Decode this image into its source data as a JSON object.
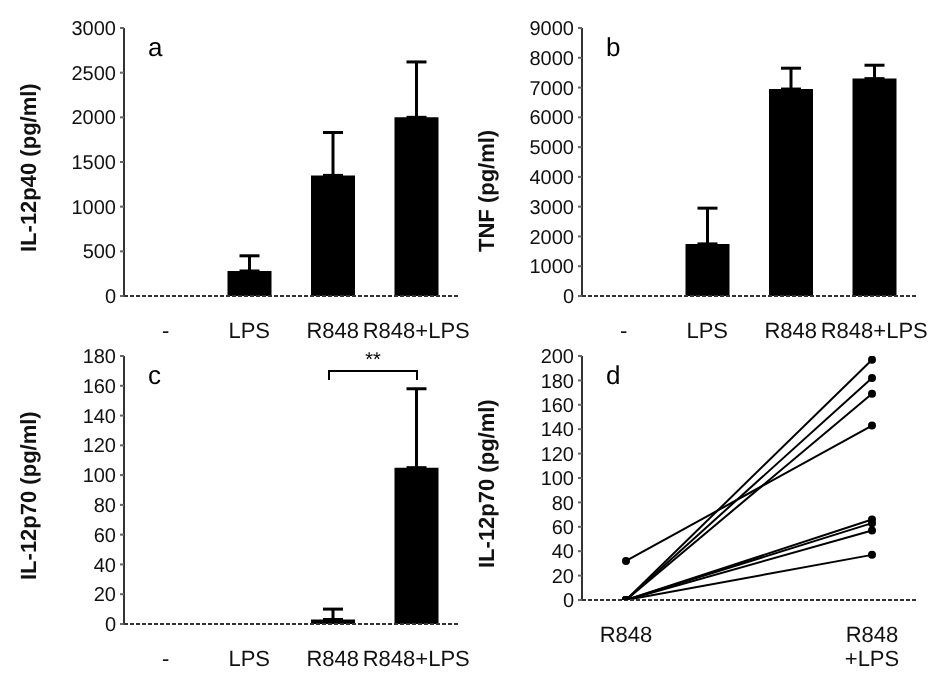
{
  "chart_data": [
    {
      "type": "bar",
      "ylabel": "IL-12p40 (pg/ml)",
      "categories": [
        "-",
        "LPS",
        "R848",
        "R848+LPS"
      ],
      "values": [
        0,
        280,
        1350,
        2000
      ],
      "errors": [
        null,
        [
          280,
          450
        ],
        [
          1350,
          1830
        ],
        [
          2000,
          2620
        ]
      ],
      "color": "#000000",
      "ylim": [
        0,
        3000
      ],
      "yticks": [
        0,
        500,
        1000,
        1500,
        2000,
        2500,
        3000
      ],
      "grid": false,
      "annotations": [
        "a"
      ]
    },
    {
      "type": "bar",
      "ylabel": "TNF (pg/ml)",
      "categories": [
        "-",
        "LPS",
        "R848",
        "R848+LPS"
      ],
      "values": [
        0,
        1750,
        6950,
        7300
      ],
      "errors": [
        null,
        [
          1750,
          2950
        ],
        [
          6950,
          7650
        ],
        [
          7300,
          7750
        ]
      ],
      "color": "#000000",
      "ylim": [
        0,
        9000
      ],
      "yticks": [
        0,
        1000,
        2000,
        3000,
        4000,
        5000,
        6000,
        7000,
        8000,
        9000
      ],
      "grid": false,
      "annotations": [
        "b"
      ]
    },
    {
      "type": "bar",
      "ylabel": "IL-12p70 (pg/ml)",
      "categories": [
        "-",
        "LPS",
        "R848",
        "R848+LPS"
      ],
      "values": [
        0,
        0,
        3,
        105
      ],
      "errors": [
        null,
        null,
        [
          3,
          10
        ],
        [
          105,
          158
        ]
      ],
      "color": "#000000",
      "ylim": [
        0,
        180
      ],
      "yticks": [
        0,
        20,
        40,
        60,
        80,
        100,
        120,
        140,
        160,
        180
      ],
      "grid": false,
      "annotations": [
        "c",
        "**"
      ]
    },
    {
      "type": "line",
      "ylabel": "IL-12p70 (pg/ml)",
      "categories": [
        "R848",
        "R848\n+LPS"
      ],
      "marker": "circle",
      "ylim": [
        0,
        200
      ],
      "yticks": [
        0,
        20,
        40,
        60,
        80,
        100,
        120,
        140,
        160,
        180,
        200
      ],
      "grid": false,
      "annotations": [
        "d"
      ],
      "series": [
        {
          "color": "#000000",
          "values": [
            32,
            143
          ]
        },
        {
          "color": "#000000",
          "values": [
            0,
            197
          ]
        },
        {
          "color": "#000000",
          "values": [
            0,
            182
          ]
        },
        {
          "color": "#000000",
          "values": [
            0,
            169
          ]
        },
        {
          "color": "#000000",
          "values": [
            0,
            66
          ]
        },
        {
          "color": "#000000",
          "values": [
            0,
            63
          ]
        },
        {
          "color": "#000000",
          "values": [
            0,
            57
          ]
        },
        {
          "color": "#000000",
          "values": [
            0,
            37
          ]
        }
      ]
    }
  ]
}
